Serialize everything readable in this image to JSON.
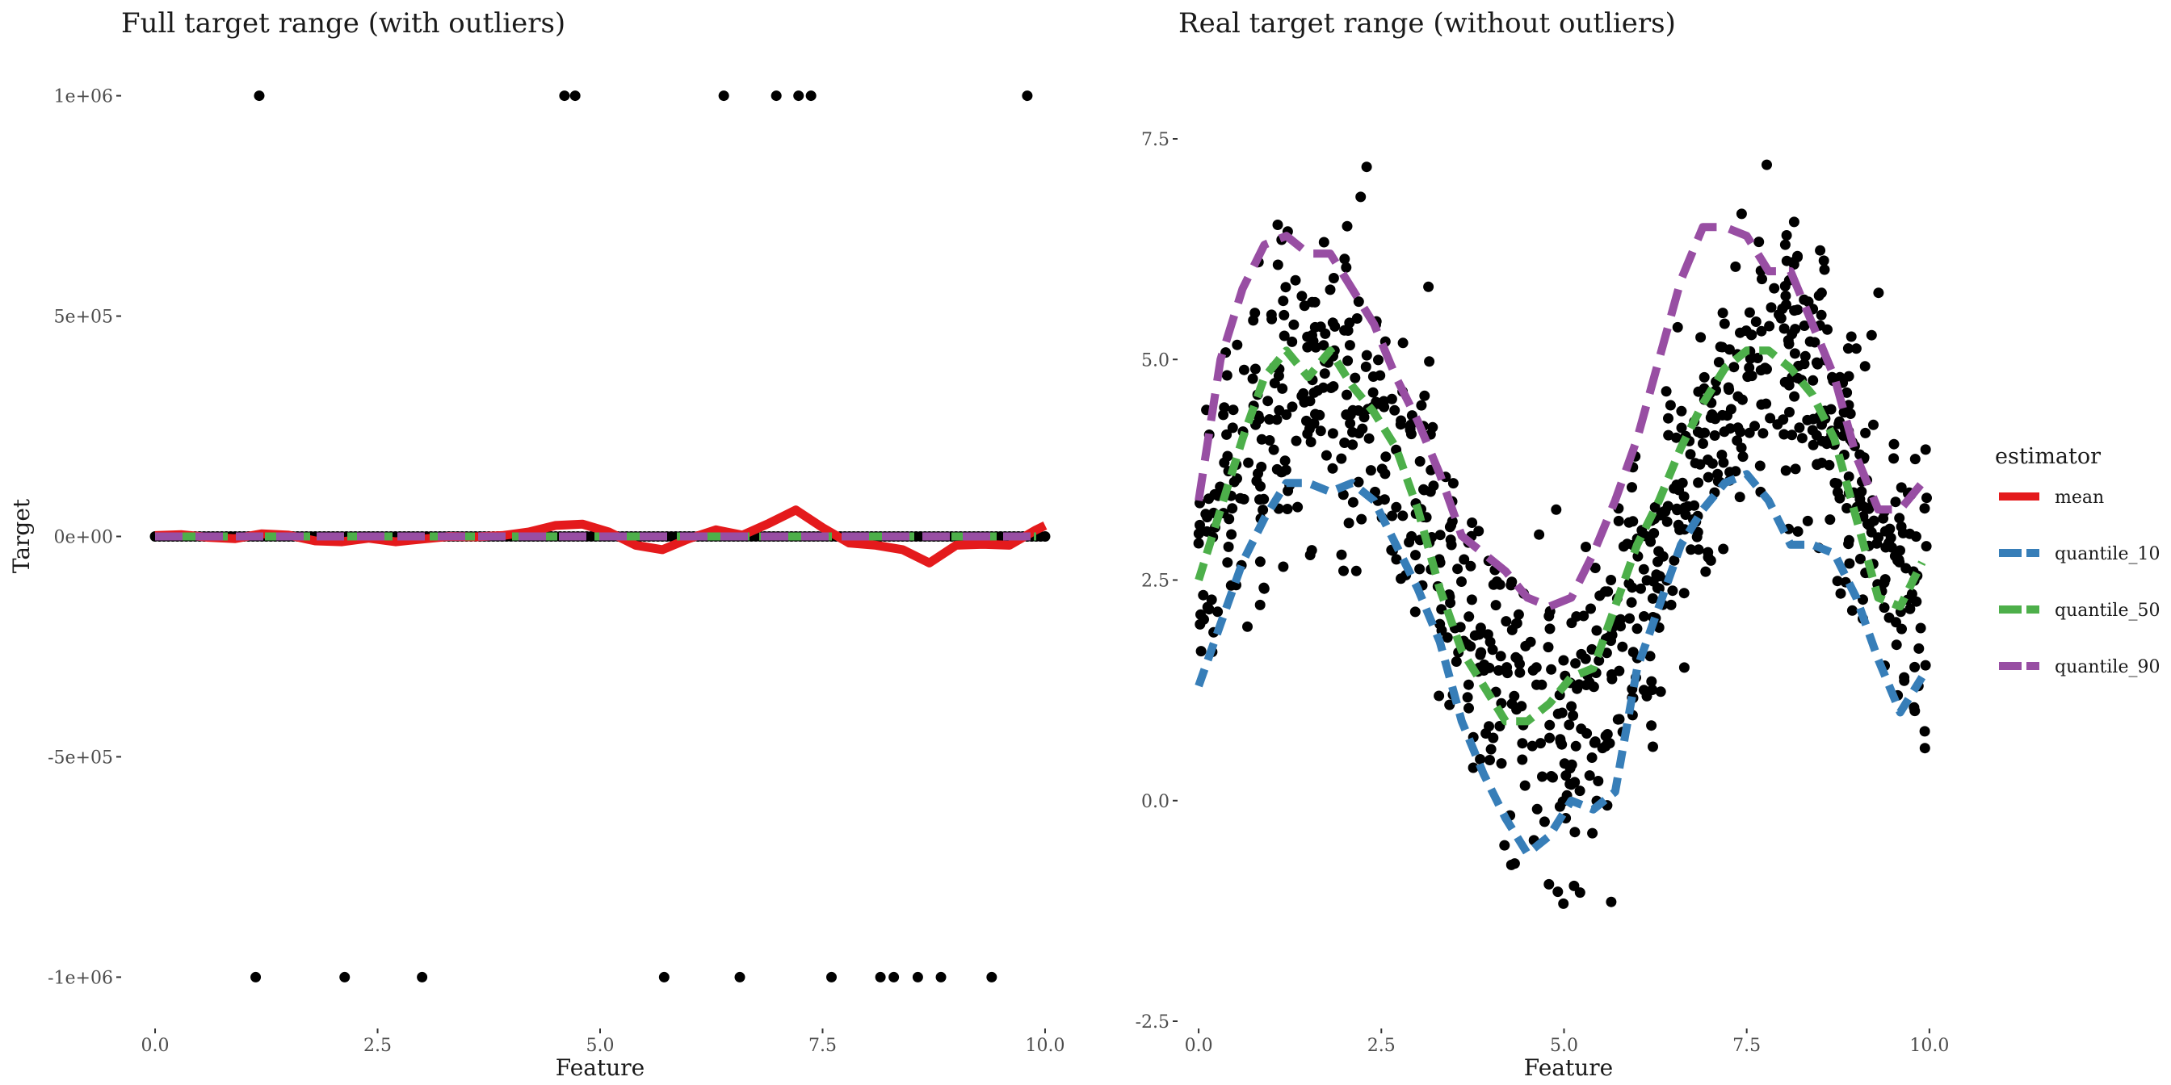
{
  "chart_data": [
    {
      "type": "scatter",
      "title": "Full target range (with outliers)",
      "xlabel": "Feature",
      "ylabel": "Target",
      "xlim": [
        -0.2,
        10.2
      ],
      "ylim": [
        -1100000,
        1100000
      ],
      "xticks": [
        0.0,
        2.5,
        5.0,
        7.5,
        10.0
      ],
      "xtick_labels": [
        "0.0",
        "2.5",
        "5.0",
        "7.5",
        "10.0"
      ],
      "yticks": [
        1000000,
        500000,
        0,
        -500000,
        -1000000
      ],
      "ytick_labels": [
        "1e+06",
        "5e+05",
        "0e+00",
        "-5e+05",
        "-1e+06"
      ],
      "grid": false,
      "outliers_high_x": [
        1.17,
        4.6,
        4.72,
        6.39,
        6.98,
        7.23,
        7.37,
        9.8
      ],
      "outliers_low_x": [
        1.13,
        2.13,
        3.0,
        5.72,
        6.57,
        7.6,
        8.15,
        8.3,
        8.57,
        8.83,
        9.4
      ],
      "series": [
        {
          "name": "mean",
          "color": "#e41a1c",
          "dash": "solid",
          "x": [
            0,
            0.3,
            0.6,
            0.9,
            1.2,
            1.5,
            1.8,
            2.1,
            2.4,
            2.7,
            3.0,
            3.3,
            3.6,
            3.9,
            4.2,
            4.5,
            4.8,
            5.1,
            5.4,
            5.7,
            6.0,
            6.3,
            6.6,
            6.9,
            7.2,
            7.5,
            7.8,
            8.1,
            8.4,
            8.7,
            9.0,
            9.3,
            9.6,
            9.9,
            10.0
          ],
          "y": [
            2000,
            4000,
            -2000,
            -5000,
            6000,
            3000,
            -10000,
            -12000,
            -4000,
            -12000,
            -6000,
            0,
            -1000,
            2000,
            10000,
            25000,
            28000,
            10000,
            -20000,
            -30000,
            -5000,
            15000,
            3000,
            30000,
            60000,
            20000,
            -15000,
            -20000,
            -30000,
            -60000,
            -20000,
            -18000,
            -20000,
            15000,
            25000
          ]
        },
        {
          "name": "quantile_10",
          "color": "#377eb8",
          "dash": "dashed",
          "x": [
            0,
            0.3,
            0.6,
            0.9,
            1.2,
            1.5,
            1.8,
            2.1,
            2.4,
            2.7,
            3.0,
            3.3,
            3.6,
            3.9,
            4.2,
            4.5,
            4.8,
            5.1,
            5.4,
            5.7,
            6.0,
            6.3,
            6.6,
            6.9,
            7.2,
            7.5,
            7.8,
            8.1,
            8.4,
            8.7,
            9.0,
            9.3,
            9.6,
            9.9
          ],
          "y": [
            1.3,
            2.0,
            2.7,
            3.2,
            3.6,
            3.6,
            3.5,
            3.6,
            3.4,
            2.9,
            2.4,
            1.8,
            0.9,
            0.3,
            -0.2,
            -0.6,
            -0.4,
            0.0,
            -0.1,
            0.1,
            1.5,
            2.2,
            2.9,
            3.3,
            3.6,
            3.7,
            3.4,
            2.9,
            2.9,
            2.8,
            2.3,
            1.6,
            1.0,
            1.4
          ]
        },
        {
          "name": "quantile_50",
          "color": "#4daf4a",
          "dash": "dashed",
          "x": [
            0,
            0.3,
            0.6,
            0.9,
            1.2,
            1.5,
            1.8,
            2.1,
            2.4,
            2.7,
            3.0,
            3.3,
            3.6,
            3.9,
            4.2,
            4.5,
            4.8,
            5.1,
            5.4,
            5.7,
            6.0,
            6.3,
            6.6,
            6.9,
            7.2,
            7.5,
            7.8,
            8.1,
            8.4,
            8.7,
            9.0,
            9.3,
            9.6,
            9.9
          ],
          "y": [
            2.5,
            3.3,
            4.1,
            4.8,
            5.1,
            4.8,
            5.1,
            4.7,
            4.4,
            4.0,
            3.3,
            2.4,
            1.7,
            1.3,
            0.9,
            0.9,
            1.1,
            1.4,
            1.5,
            2.2,
            2.9,
            3.4,
            4.0,
            4.5,
            4.9,
            5.1,
            5.1,
            4.9,
            4.6,
            4.1,
            3.2,
            2.3,
            2.2,
            2.7
          ]
        },
        {
          "name": "quantile_90",
          "color": "#984ea3",
          "dash": "dashed",
          "x": [
            0,
            0.3,
            0.6,
            0.9,
            1.2,
            1.5,
            1.8,
            2.1,
            2.4,
            2.7,
            3.0,
            3.3,
            3.6,
            3.9,
            4.2,
            4.5,
            4.8,
            5.1,
            5.4,
            5.7,
            6.0,
            6.3,
            6.6,
            6.9,
            7.2,
            7.5,
            7.8,
            8.1,
            8.4,
            8.7,
            9.0,
            9.3,
            9.6,
            9.9
          ],
          "y": [
            3.4,
            5.0,
            5.8,
            6.3,
            6.4,
            6.2,
            6.2,
            5.8,
            5.4,
            4.8,
            4.3,
            3.7,
            3.0,
            2.8,
            2.6,
            2.3,
            2.2,
            2.3,
            2.8,
            3.4,
            4.1,
            5.0,
            5.9,
            6.5,
            6.5,
            6.4,
            6.0,
            6.0,
            5.4,
            4.8,
            3.9,
            3.3,
            3.3,
            3.6
          ]
        }
      ]
    },
    {
      "type": "scatter",
      "title": "Real target range (without outliers)",
      "xlabel": "Feature",
      "ylabel": "",
      "xlim": [
        -0.2,
        10.3
      ],
      "ylim": [
        -2.5,
        7.5
      ],
      "xticks": [
        0.0,
        2.5,
        5.0,
        7.5,
        10.0
      ],
      "xtick_labels": [
        "0.0",
        "2.5",
        "5.0",
        "7.5",
        "10.0"
      ],
      "yticks": [
        7.5,
        5.0,
        2.5,
        0.0,
        -2.5
      ],
      "ytick_labels": [
        "7.5",
        "5.0",
        "2.5",
        "0.0",
        "-2.5"
      ],
      "grid": false,
      "data_trend": {
        "x": [
          0,
          1,
          1.8,
          2.5,
          3.5,
          4.7,
          5.5,
          6.5,
          7.7,
          8.5,
          9.5,
          10.0
        ],
        "y": [
          3.0,
          4.6,
          5.0,
          4.3,
          2.3,
          0.7,
          1.2,
          3.2,
          5.0,
          4.6,
          2.6,
          2.2
        ]
      },
      "series": [
        {
          "name": "quantile_10",
          "color": "#377eb8",
          "dash": "dashed",
          "x": [
            0,
            0.3,
            0.6,
            0.9,
            1.2,
            1.5,
            1.8,
            2.1,
            2.4,
            2.7,
            3.0,
            3.3,
            3.6,
            3.9,
            4.2,
            4.5,
            4.8,
            5.1,
            5.4,
            5.7,
            6.0,
            6.3,
            6.6,
            6.9,
            7.2,
            7.5,
            7.8,
            8.1,
            8.4,
            8.7,
            9.0,
            9.3,
            9.6,
            9.9
          ],
          "y": [
            1.3,
            2.0,
            2.7,
            3.2,
            3.6,
            3.6,
            3.5,
            3.6,
            3.4,
            2.9,
            2.4,
            1.8,
            0.9,
            0.3,
            -0.2,
            -0.6,
            -0.4,
            0.0,
            -0.1,
            0.1,
            1.5,
            2.2,
            2.9,
            3.3,
            3.6,
            3.7,
            3.4,
            2.9,
            2.9,
            2.8,
            2.3,
            1.6,
            1.0,
            1.4
          ]
        },
        {
          "name": "quantile_50",
          "color": "#4daf4a",
          "dash": "dashed",
          "x": [
            0,
            0.3,
            0.6,
            0.9,
            1.2,
            1.5,
            1.8,
            2.1,
            2.4,
            2.7,
            3.0,
            3.3,
            3.6,
            3.9,
            4.2,
            4.5,
            4.8,
            5.1,
            5.4,
            5.7,
            6.0,
            6.3,
            6.6,
            6.9,
            7.2,
            7.5,
            7.8,
            8.1,
            8.4,
            8.7,
            9.0,
            9.3,
            9.6,
            9.9
          ],
          "y": [
            2.5,
            3.3,
            4.1,
            4.8,
            5.1,
            4.8,
            5.1,
            4.7,
            4.4,
            4.0,
            3.3,
            2.4,
            1.7,
            1.3,
            0.9,
            0.9,
            1.1,
            1.4,
            1.5,
            2.2,
            2.9,
            3.4,
            4.0,
            4.5,
            4.9,
            5.1,
            5.1,
            4.9,
            4.6,
            4.1,
            3.2,
            2.3,
            2.2,
            2.7
          ]
        },
        {
          "name": "quantile_90",
          "color": "#984ea3",
          "dash": "dashed",
          "x": [
            0,
            0.3,
            0.6,
            0.9,
            1.2,
            1.5,
            1.8,
            2.1,
            2.4,
            2.7,
            3.0,
            3.3,
            3.6,
            3.9,
            4.2,
            4.5,
            4.8,
            5.1,
            5.4,
            5.7,
            6.0,
            6.3,
            6.6,
            6.9,
            7.2,
            7.5,
            7.8,
            8.1,
            8.4,
            8.7,
            9.0,
            9.3,
            9.6,
            9.9
          ],
          "y": [
            3.4,
            5.0,
            5.8,
            6.3,
            6.4,
            6.2,
            6.2,
            5.8,
            5.4,
            4.8,
            4.3,
            3.7,
            3.0,
            2.8,
            2.6,
            2.3,
            2.2,
            2.3,
            2.8,
            3.4,
            4.1,
            5.0,
            5.9,
            6.5,
            6.5,
            6.4,
            6.0,
            6.0,
            5.4,
            4.8,
            3.9,
            3.3,
            3.3,
            3.6
          ]
        }
      ]
    }
  ],
  "legend": {
    "title": "estimator",
    "items": [
      {
        "label": "mean",
        "color": "#e41a1c"
      },
      {
        "label": "quantile_10",
        "color": "#377eb8"
      },
      {
        "label": "quantile_50",
        "color": "#4daf4a"
      },
      {
        "label": "quantile_90",
        "color": "#984ea3"
      }
    ]
  }
}
